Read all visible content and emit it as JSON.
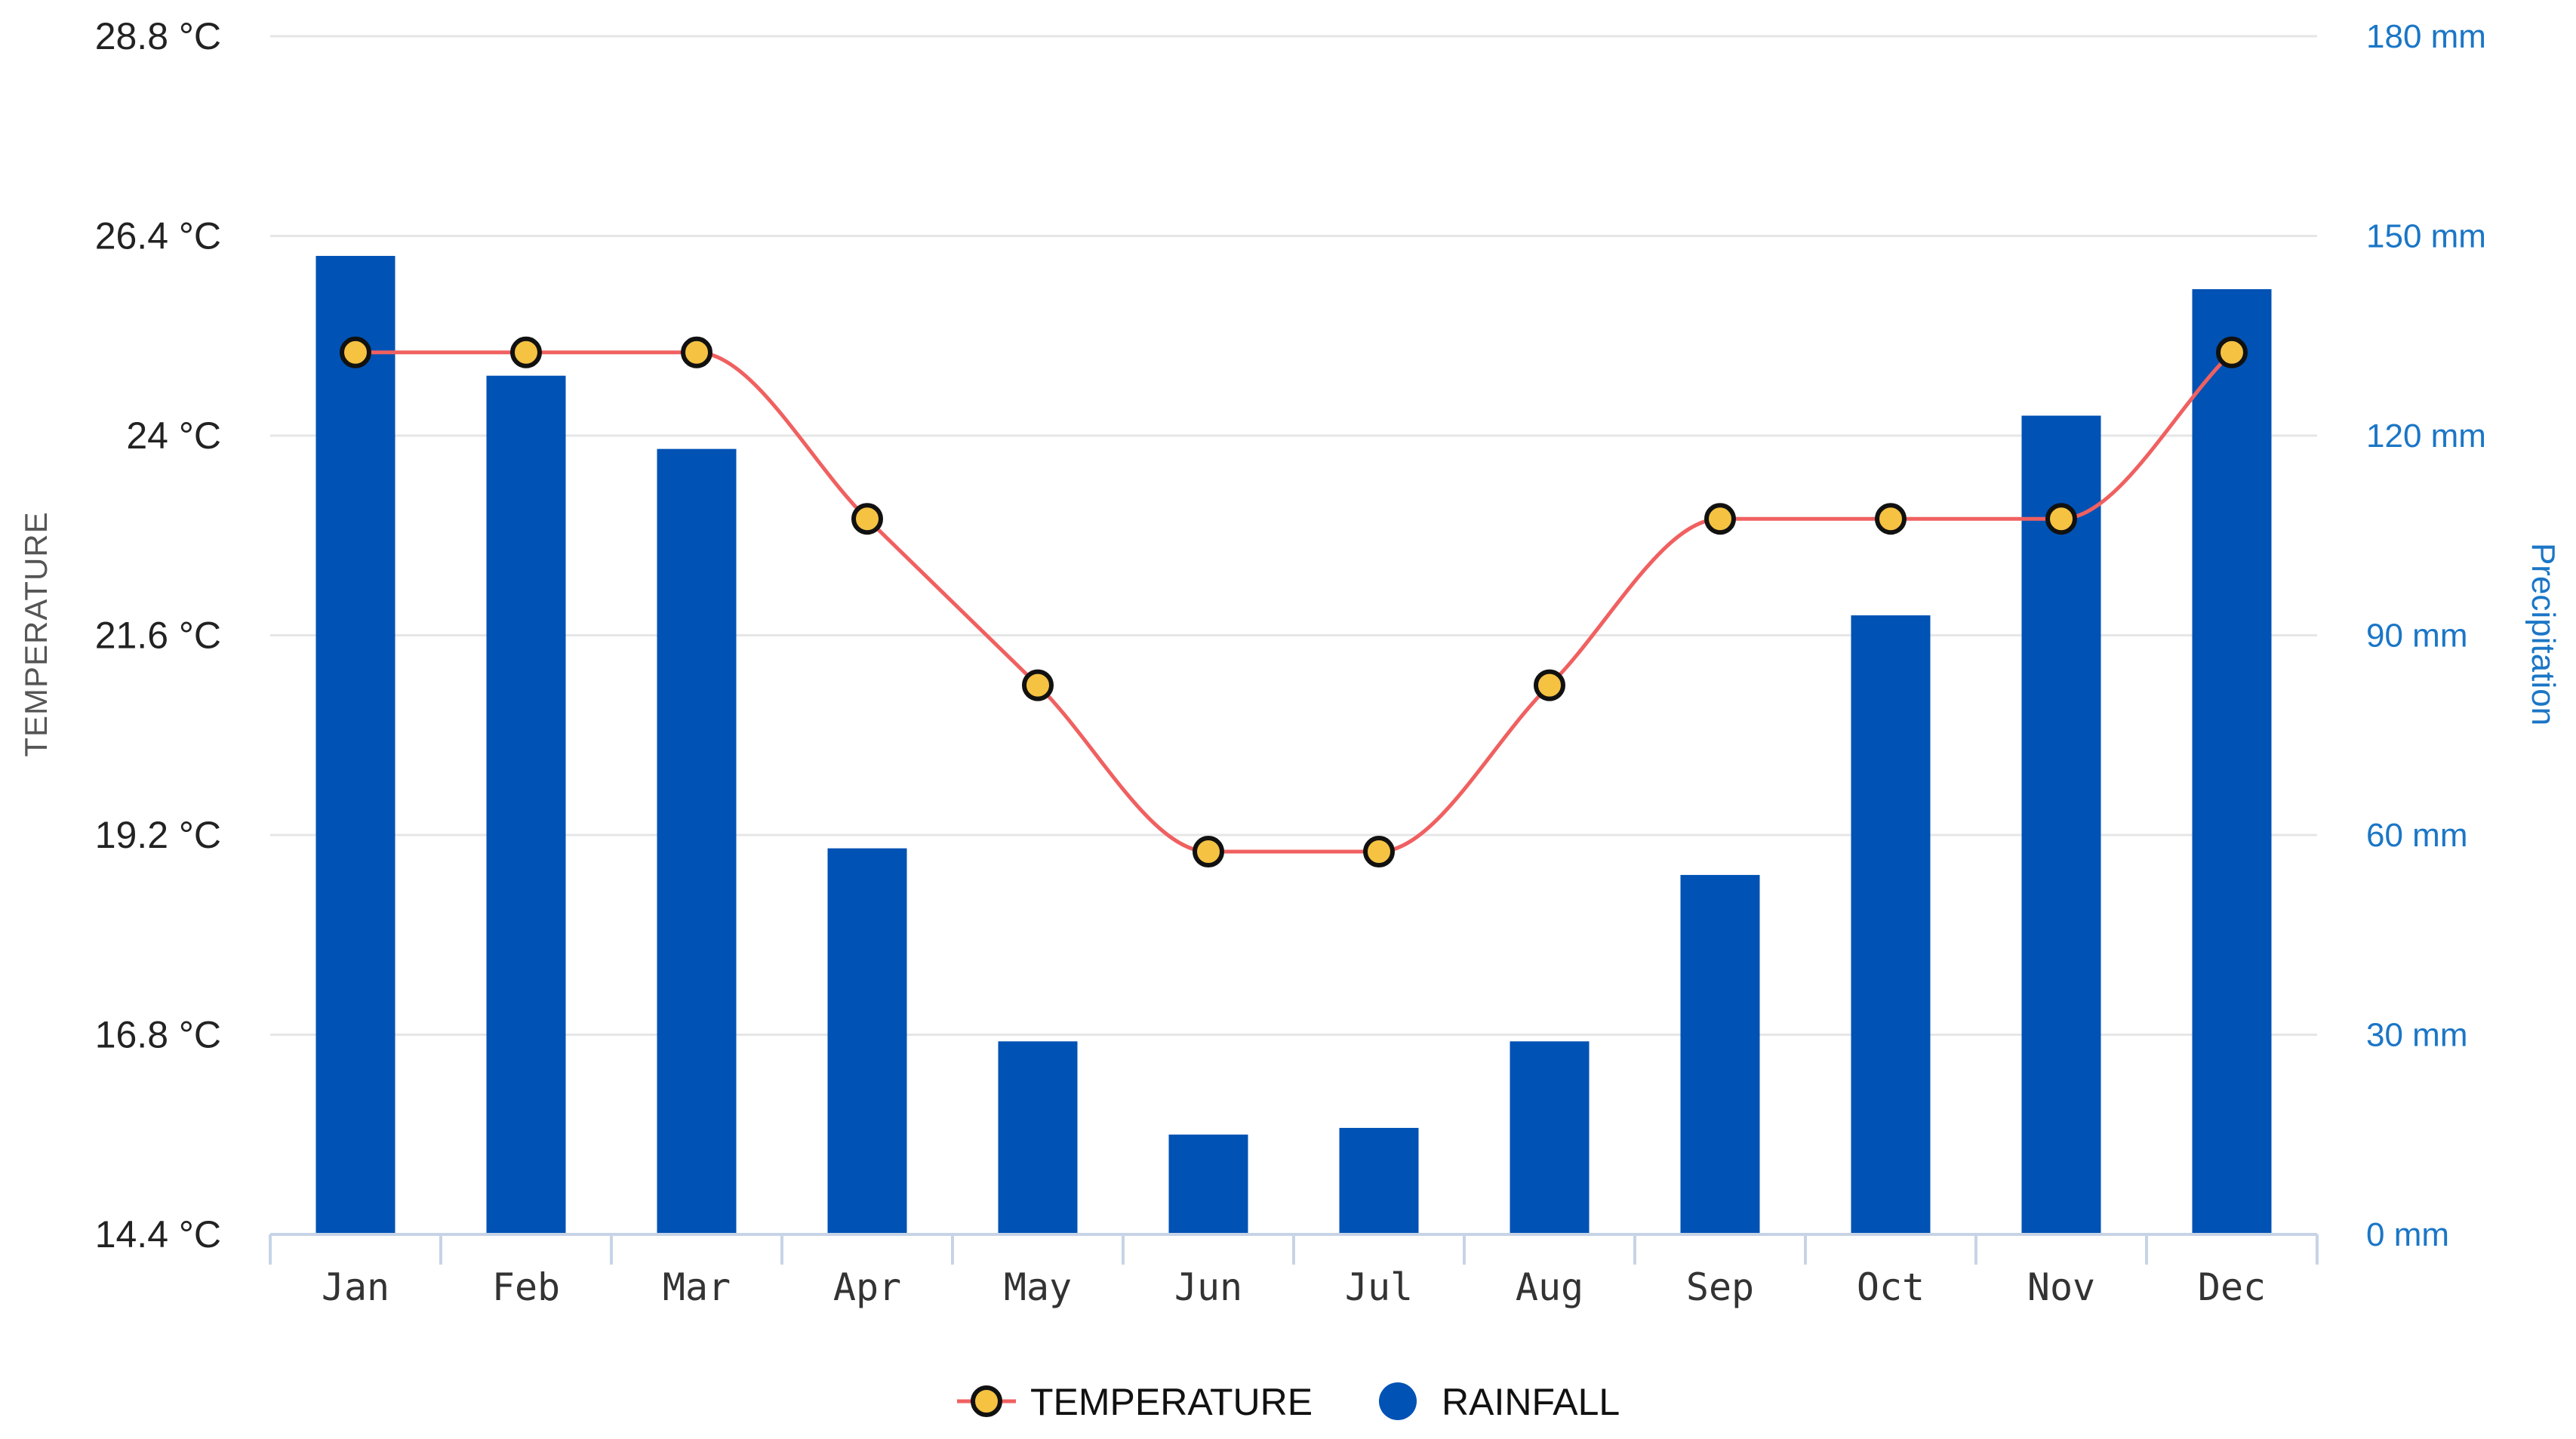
{
  "chart_data": {
    "type": "bar",
    "categories": [
      "Jan",
      "Feb",
      "Mar",
      "Apr",
      "May",
      "Jun",
      "Jul",
      "Aug",
      "Sep",
      "Oct",
      "Nov",
      "Dec"
    ],
    "series": [
      {
        "name": "TEMPERATURE",
        "type": "line",
        "axis": "left",
        "values": [
          25.0,
          25.0,
          25.0,
          23.0,
          21.0,
          19.0,
          19.0,
          21.0,
          23.0,
          23.0,
          23.0,
          25.0
        ]
      },
      {
        "name": "RAINFALL",
        "type": "bar",
        "axis": "right",
        "values": [
          147,
          129,
          118,
          58,
          29,
          15,
          16,
          29,
          54,
          93,
          123,
          142
        ]
      }
    ],
    "y_left": {
      "label": "TEMPERATURE",
      "range": [
        14.4,
        28.8
      ],
      "ticks": [
        14.4,
        16.8,
        19.2,
        21.6,
        24,
        26.4,
        28.8
      ],
      "tick_labels": [
        "14.4 °C",
        "16.8 °C",
        "19.2 °C",
        "21.6 °C",
        "24 °C",
        "26.4 °C",
        "28.8 °C"
      ]
    },
    "y_right": {
      "label": "Precipitation",
      "range": [
        0,
        180
      ],
      "ticks": [
        0,
        30,
        60,
        90,
        120,
        150,
        180
      ],
      "tick_labels": [
        "0 mm",
        "30 mm",
        "60 mm",
        "90 mm",
        "120 mm",
        "150 mm",
        "180 mm"
      ]
    },
    "grid": true,
    "legend_position": "bottom-center",
    "colors": {
      "bar": "#0052b4",
      "line": "#f06060",
      "marker_fill": "#f5c242",
      "marker_stroke": "#111111",
      "grid": "#e6e6e6",
      "axis": "#c7d4e6",
      "right_axis_text": "#1b76c6"
    }
  }
}
